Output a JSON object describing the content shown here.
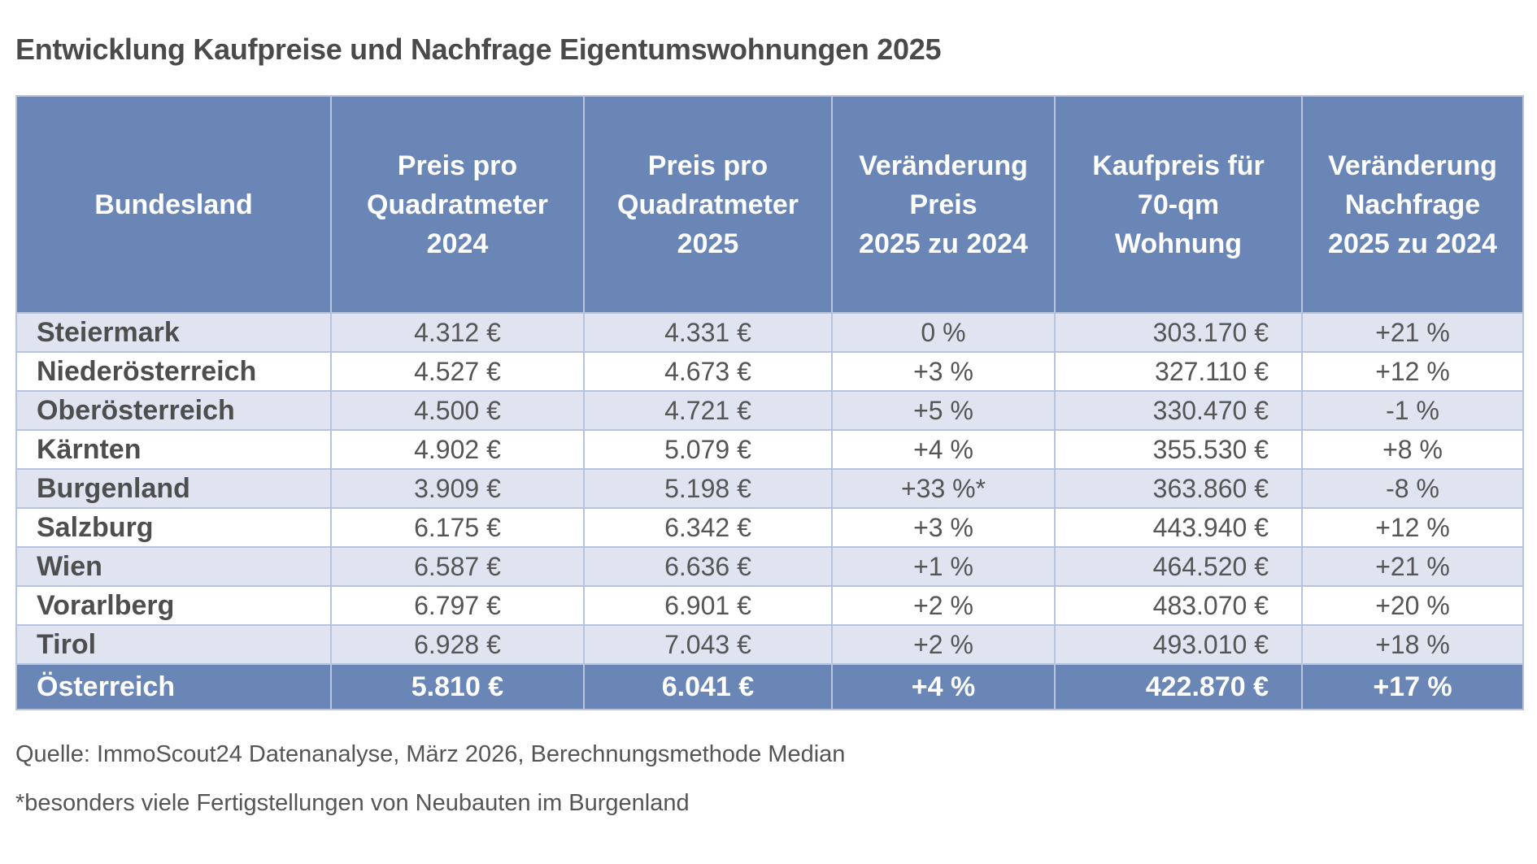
{
  "title": "Entwicklung Kaufpreise und Nachfrage Eigentumswohnungen 2025",
  "table": {
    "headers": [
      [
        "Bundesland"
      ],
      [
        "Preis pro",
        "Quadratmeter",
        "2024"
      ],
      [
        "Preis pro",
        "Quadratmeter",
        "2025"
      ],
      [
        "Veränderung",
        "Preis",
        "2025 zu 2024"
      ],
      [
        "Kaufpreis für",
        "70-qm",
        "Wohnung"
      ],
      [
        "Veränderung",
        "Nachfrage",
        "2025 zu 2024"
      ]
    ],
    "rows": [
      [
        "Steiermark",
        "4.312 €",
        "4.331 €",
        "0 %",
        "303.170 €",
        "+21 %"
      ],
      [
        "Niederösterreich",
        "4.527 €",
        "4.673 €",
        "+3 %",
        "327.110 €",
        "+12 %"
      ],
      [
        "Oberösterreich",
        "4.500 €",
        "4.721 €",
        "+5 %",
        "330.470 €",
        "-1 %"
      ],
      [
        "Kärnten",
        "4.902 €",
        "5.079 €",
        "+4 %",
        "355.530 €",
        "+8 %"
      ],
      [
        "Burgenland",
        "3.909 €",
        "5.198 €",
        "+33 %*",
        "363.860 €",
        "-8 %"
      ],
      [
        "Salzburg",
        "6.175 €",
        "6.342 €",
        "+3 %",
        "443.940 €",
        "+12 %"
      ],
      [
        "Wien",
        "6.587 €",
        "6.636 €",
        "+1 %",
        "464.520 €",
        "+21 %"
      ],
      [
        "Vorarlberg",
        "6.797 €",
        "6.901 €",
        "+2 %",
        "483.070 €",
        "+20 %"
      ],
      [
        "Tirol",
        "6.928 €",
        "7.043 €",
        "+2 %",
        "493.010 €",
        "+18 %"
      ]
    ],
    "total": [
      "Österreich",
      "5.810 €",
      "6.041 €",
      "+4 %",
      "422.870 €",
      "+17 %"
    ]
  },
  "source": "Quelle: ImmoScout24 Datenanalyse, März 2026, Berechnungsmethode Median",
  "footnote": "*besonders viele Fertigstellungen von Neubauten im Burgenland",
  "colors": {
    "header": "#6a86b6",
    "row_alt": "#dfe4f0",
    "border": "#b7c4df"
  }
}
